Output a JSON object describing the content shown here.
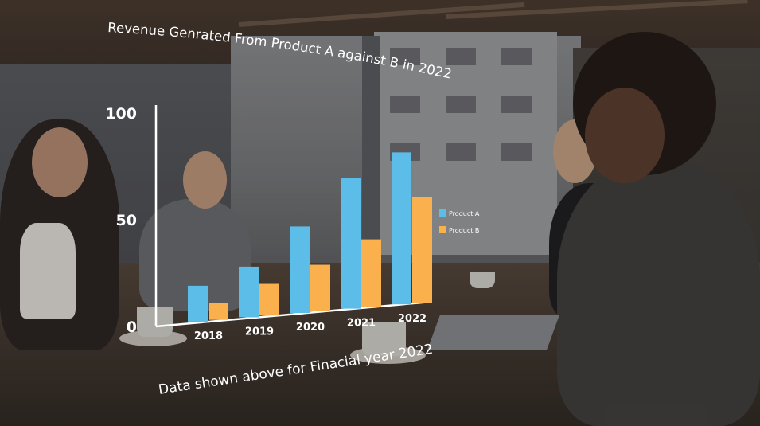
{
  "chart_data": {
    "type": "bar",
    "title": "Revenue Genrated From Product A against B in 2022",
    "subtitle": "Data shown above for Finacial year 2022",
    "categories": [
      "2018",
      "2019",
      "2020",
      "2021",
      "2022"
    ],
    "series": [
      {
        "name": "Product A",
        "color": "#5bbde8",
        "values": [
          17,
          24,
          41,
          62,
          72
        ]
      },
      {
        "name": "Product B",
        "color": "#fbb04e",
        "values": [
          8,
          15,
          22,
          32,
          50
        ]
      }
    ],
    "yticks": [
      "0",
      "50",
      "100"
    ],
    "ylim": [
      0,
      100
    ],
    "legend": "right",
    "grid": false
  }
}
